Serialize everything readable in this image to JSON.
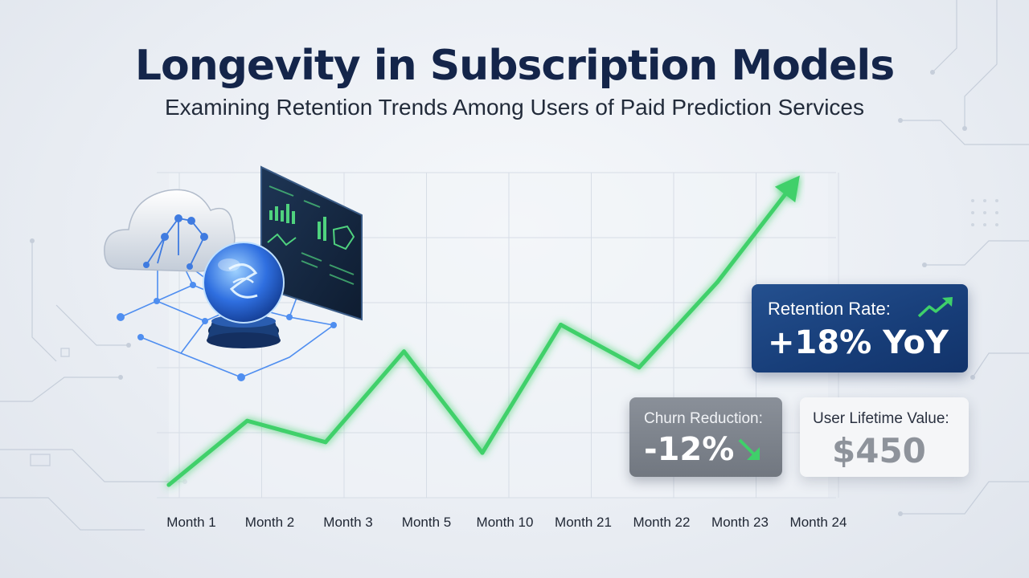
{
  "header": {
    "title": "Longevity in Subscription Models",
    "subtitle": "Examining Retention Trends Among Users of Paid Prediction Services"
  },
  "chart_data": {
    "type": "line",
    "categories": [
      "Month 1",
      "Month 2",
      "Month 3",
      "Month 5",
      "Month 10",
      "Month 21",
      "Month 22",
      "Month 23",
      "Month 24"
    ],
    "series": [
      {
        "values": [
          0,
          12,
          8,
          25,
          6,
          30,
          22,
          38,
          57
        ]
      }
    ],
    "ylim": [
      0,
      60
    ],
    "grid": true,
    "trend_arrow": "up",
    "line_color": "#3fd06a",
    "title": "",
    "xlabel": "",
    "ylabel": ""
  },
  "kpis": {
    "retention": {
      "label": "Retention Rate:",
      "value": "+18% YoY",
      "trend": "up",
      "icon": "trend-up-icon"
    },
    "churn": {
      "label": "Churn Reduction:",
      "value": "-12%",
      "trend": "down",
      "icon": "arrow-down-right-icon"
    },
    "ltv": {
      "label": "User Lifetime Value:",
      "value": "$450"
    }
  },
  "illustration": {
    "icons": [
      "cloud-network-icon",
      "crystal-ball-icon",
      "dashboard-monitor-icon"
    ]
  },
  "colors": {
    "title": "#14254a",
    "accent_green": "#3fd06a",
    "card_blue": "#1b437f",
    "card_gray": "#7c828b"
  }
}
